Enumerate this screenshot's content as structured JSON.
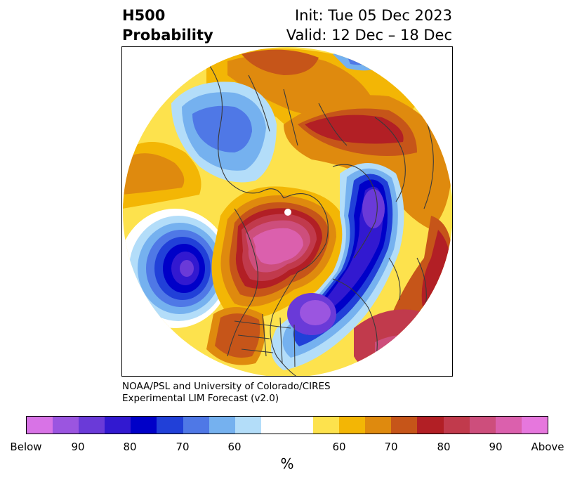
{
  "header": {
    "title_line1": "H500",
    "title_line2": "Probability",
    "init": "Init: Tue 05 Dec 2023",
    "valid": "Valid: 12 Dec – 18 Dec"
  },
  "credit": {
    "line1": "NOAA/PSL and University of Colorado/CIRES",
    "line2": "Experimental LIM Forecast (v2.0)"
  },
  "colorbar": {
    "colors": [
      "#d873e6",
      "#9b55e0",
      "#6a3ad8",
      "#3219d0",
      "#0000c8",
      "#2140d8",
      "#4f78e6",
      "#75b1ef",
      "#b3ddf9",
      "#ffffff",
      "#ffffff",
      "#fde24d",
      "#f3b605",
      "#df8a0e",
      "#c65519",
      "#b21f25",
      "#c13a4c",
      "#cd4e7c",
      "#db60ad",
      "#e677dd"
    ],
    "tick_labels": [
      "Below",
      "90",
      "80",
      "70",
      "60",
      "60",
      "70",
      "80",
      "90",
      "Above"
    ],
    "unit": "%"
  },
  "map": {
    "projection": "north-polar-stereographic",
    "features": [
      "coastlines",
      "country-borders",
      "us-state-borders"
    ]
  }
}
